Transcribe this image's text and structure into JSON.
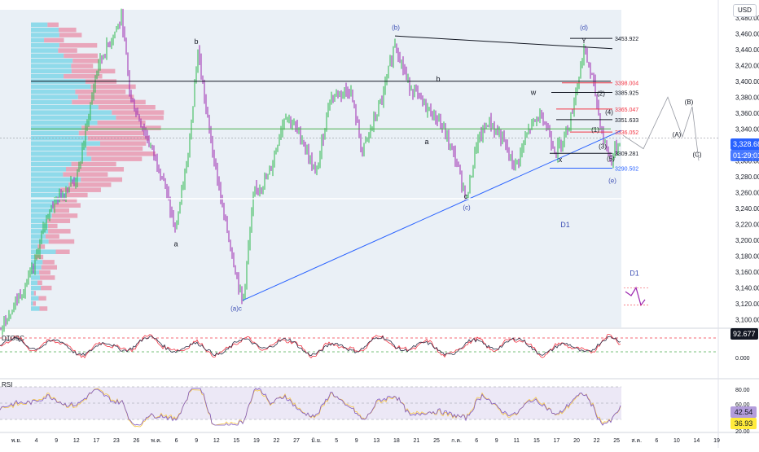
{
  "currency": "USD",
  "chart_data": {
    "type": "line",
    "price_ticks": [
      "3,480.000",
      "3,460.000",
      "3,440.000",
      "3,420.000",
      "3,400.000",
      "3,380.000",
      "3,360.000",
      "3,340.000",
      "3,320.000",
      "3,300.000",
      "3,280.000",
      "3,260.000",
      "3,240.000",
      "3,220.000",
      "3,200.000",
      "3,180.000",
      "3,160.000",
      "3,140.000",
      "3,120.000",
      "3,100.000"
    ],
    "y_range": [
      3090,
      3490
    ],
    "date_ticks": [
      "พ.ย.",
      "4",
      "9",
      "12",
      "17",
      "23",
      "26",
      "พ.ค.",
      "6",
      "9",
      "12",
      "15",
      "19",
      "22",
      "27",
      "มิ.ย.",
      "5",
      "9",
      "13",
      "18",
      "21",
      "25",
      "ก.ค.",
      "6",
      "9",
      "11",
      "15",
      "17",
      "20",
      "22",
      "25",
      "ส.ค.",
      "6",
      "10",
      "14",
      "19"
    ],
    "current_price": "3,328.680",
    "countdown": "01:29:01",
    "levels": [
      {
        "label": "3453.922",
        "value": 3453.922,
        "color": "#131722"
      },
      {
        "label": "3398.004",
        "value": 3398.004,
        "color": "#f23645"
      },
      {
        "label": "3385.925",
        "value": 3385.925,
        "color": "#131722"
      },
      {
        "label": "3365.047",
        "value": 3365.047,
        "color": "#f23645"
      },
      {
        "label": "3351.633",
        "value": 3351.633,
        "color": "#131722"
      },
      {
        "label": "3336.052",
        "value": 3336.052,
        "color": "#f23645"
      },
      {
        "label": "3309.281",
        "value": 3309.281,
        "color": "#131722"
      },
      {
        "label": "3290.502",
        "value": 3290.502,
        "color": "#2962ff"
      }
    ],
    "wave_labels": [
      "(b)",
      "(d)",
      "Y",
      "b",
      "b",
      "a",
      "a",
      "c",
      "(c)",
      "w",
      "x",
      "(1)",
      "(2)",
      "(3)",
      "(4)",
      "(5)",
      "(e)",
      "(a)c",
      "(A)",
      "(B)",
      "(C)",
      "D1",
      "D1"
    ],
    "indicators": {
      "dtosc": {
        "label": "DTOSC",
        "value": "92.677",
        "ticks": [
          "0.000"
        ]
      },
      "rsi": {
        "label": "RSI",
        "values": [
          "42.54",
          "36.93"
        ],
        "ticks": [
          "80.00",
          "60.00",
          "40.00",
          "20.00"
        ]
      }
    },
    "colors": {
      "bull": "#2db84d",
      "bear": "#9c27b0",
      "resistance": "#f23645",
      "support": "#2962ff",
      "profile_up": "#7fd6e8",
      "profile_down": "#e894ad",
      "rsi_band": "#d9d2ee"
    }
  }
}
